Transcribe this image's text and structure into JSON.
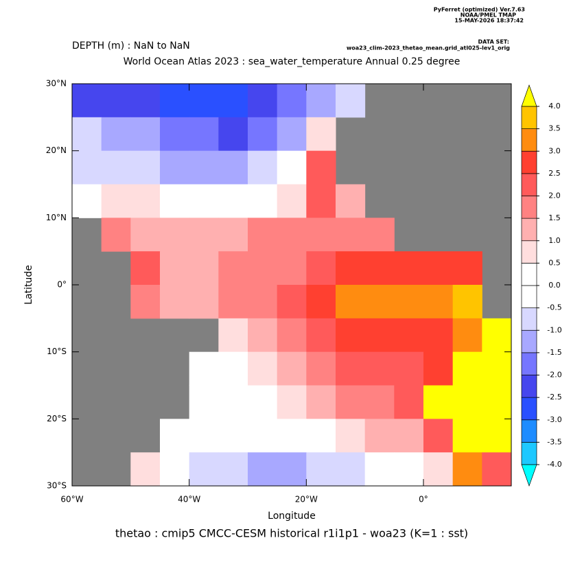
{
  "header": {
    "software": "PyFerret (optimized) Ver.7.63",
    "org": "NOAA/PMEL TMAP",
    "date": "15-MAY-2026 18:37:42",
    "dataset_label": "DATA SET:",
    "dataset": "woa23_clim-2023_thetao_mean.grid_atl025-lev1_orig"
  },
  "chart_data": {
    "type": "heatmap",
    "subtitle": "DEPTH (m) : NaN to NaN",
    "title": "World Ocean Atlas 2023 : sea_water_temperature Annual  0.25 degree",
    "footer": "thetao : cmip5 CMCC-CESM historical r1i1p1 - woa23  (K=1 : sst)",
    "x_label": "Longitude",
    "y_label": "Latitude",
    "xlim": [
      -60,
      15
    ],
    "ylim": [
      -30,
      30
    ],
    "xticks": [
      {
        "value": -60,
        "label": "60°W"
      },
      {
        "value": -40,
        "label": "40°W"
      },
      {
        "value": -20,
        "label": "20°W"
      },
      {
        "value": 0,
        "label": "0°"
      }
    ],
    "yticks": [
      {
        "value": 30,
        "label": "30°N"
      },
      {
        "value": 20,
        "label": "20°N"
      },
      {
        "value": 10,
        "label": "10°N"
      },
      {
        "value": 0,
        "label": "0°"
      },
      {
        "value": -10,
        "label": "10°S"
      },
      {
        "value": -20,
        "label": "20°S"
      },
      {
        "value": -30,
        "label": "30°S"
      }
    ],
    "x": [
      -57.5,
      -52.5,
      -47.5,
      -42.5,
      -37.5,
      -32.5,
      -27.5,
      -22.5,
      -17.5,
      -12.5,
      -7.5,
      -2.5,
      2.5,
      7.5,
      12.5
    ],
    "y": [
      27.5,
      22.5,
      17.5,
      12.5,
      7.5,
      2.5,
      -2.5,
      -7.5,
      -12.5,
      -17.5,
      -22.5,
      -27.5
    ],
    "values": [
      [
        -2.5,
        -2.5,
        -2.5,
        -3,
        -3,
        -3,
        -2.5,
        -2,
        -1.5,
        -1,
        null,
        null,
        null,
        null,
        null
      ],
      [
        -1,
        -1.5,
        -1.5,
        -2,
        -2,
        -2.5,
        -2,
        -1.5,
        0.5,
        null,
        null,
        null,
        null,
        null,
        null
      ],
      [
        -1,
        -1,
        -1,
        -1.5,
        -1.5,
        -1.5,
        -1,
        -0.5,
        2,
        null,
        null,
        null,
        null,
        null,
        null
      ],
      [
        0,
        0.5,
        0.5,
        0,
        0,
        0,
        0,
        0.5,
        2,
        1,
        null,
        null,
        null,
        null,
        null
      ],
      [
        null,
        1.5,
        1,
        1,
        1,
        1,
        1.5,
        1.5,
        1.5,
        1.5,
        1.5,
        null,
        null,
        null,
        null
      ],
      [
        null,
        null,
        2,
        1,
        1,
        1.5,
        1.5,
        1.5,
        2,
        2.5,
        2.5,
        2.5,
        2.5,
        2.5,
        null
      ],
      [
        null,
        null,
        1.5,
        1,
        1,
        1.5,
        1.5,
        2,
        2.5,
        3,
        3,
        3,
        3,
        3.5,
        null
      ],
      [
        null,
        null,
        null,
        null,
        null,
        0.5,
        1,
        1.5,
        2,
        2.5,
        2.5,
        2.5,
        2.5,
        3,
        4
      ],
      [
        null,
        null,
        null,
        null,
        0,
        0,
        0.5,
        1,
        1.5,
        2,
        2,
        2,
        2.5,
        4,
        4
      ],
      [
        null,
        null,
        null,
        null,
        0,
        0,
        0,
        0.5,
        1,
        1.5,
        1.5,
        2,
        4,
        4,
        4
      ],
      [
        null,
        null,
        null,
        0,
        -0.5,
        -0.5,
        0,
        0,
        0,
        0.5,
        1,
        1,
        2,
        4,
        4
      ],
      [
        null,
        null,
        0.5,
        -0.5,
        -1,
        -1,
        -1.5,
        -1.5,
        -1,
        -1,
        -0.5,
        0,
        0.5,
        3,
        2
      ]
    ],
    "null_color": "#808080",
    "colorbar": {
      "ticks": [
        {
          "value": -4,
          "label": "-4.0"
        },
        {
          "value": -3.5,
          "label": "-3.5"
        },
        {
          "value": -3,
          "label": "-3.0"
        },
        {
          "value": -2.5,
          "label": "-2.5"
        },
        {
          "value": -2,
          "label": "-2.0"
        },
        {
          "value": -1.5,
          "label": "-1.5"
        },
        {
          "value": -1,
          "label": "-1.0"
        },
        {
          "value": -0.5,
          "label": "-0.5"
        },
        {
          "value": 0,
          "label": "0.0"
        },
        {
          "value": 0.5,
          "label": "0.5"
        },
        {
          "value": 1,
          "label": "1.0"
        },
        {
          "value": 1.5,
          "label": "1.5"
        },
        {
          "value": 2,
          "label": "2.0"
        },
        {
          "value": 2.5,
          "label": "2.5"
        },
        {
          "value": 3,
          "label": "3.0"
        },
        {
          "value": 3.5,
          "label": "3.5"
        },
        {
          "value": 4,
          "label": "4.0"
        }
      ],
      "colors": [
        "#1ec8ff",
        "#1e8cff",
        "#2a50ff",
        "#4646ee",
        "#7676ff",
        "#a8a8ff",
        "#d8d8ff",
        "#ffffff",
        "#ffffff",
        "#ffdede",
        "#ffb0b0",
        "#ff8282",
        "#ff5a5a",
        "#ff4030",
        "#ff8c10",
        "#ffc400"
      ],
      "under_color": "#00ffff",
      "over_color": "#ffff00"
    }
  }
}
